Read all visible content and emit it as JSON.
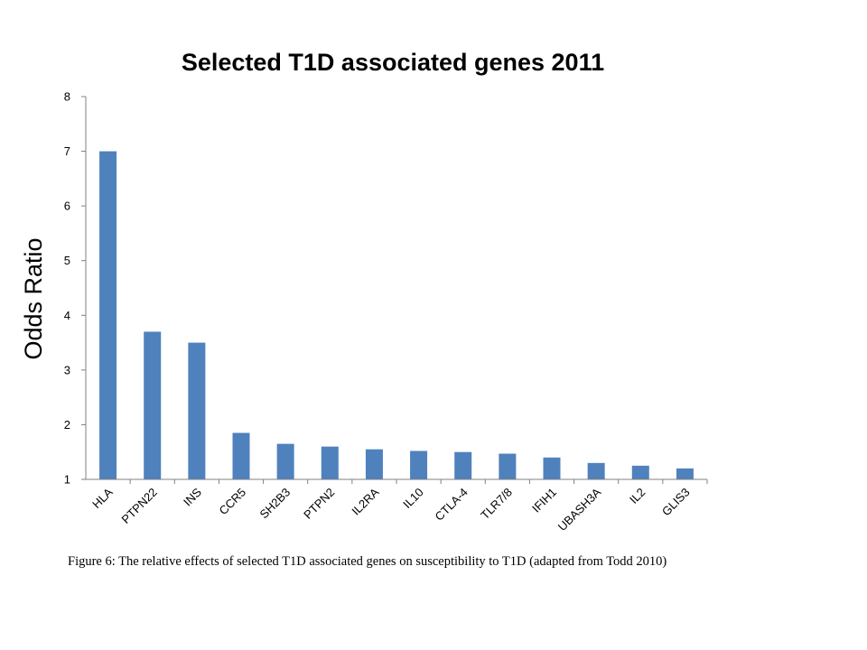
{
  "chart_data": {
    "type": "bar",
    "title": "Selected T1D associated genes 2011",
    "xlabel": "",
    "ylabel": "Odds Ratio",
    "ylim": [
      1,
      8
    ],
    "yticks": [
      1,
      2,
      3,
      4,
      5,
      6,
      7,
      8
    ],
    "grid": false,
    "bar_color": "#4f81bd",
    "categories": [
      "HLA",
      "PTPN22",
      "INS",
      "CCR5",
      "SH2B3",
      "PTPN2",
      "IL2RA",
      "IL10",
      "CTLA-4",
      "TLR7/8",
      "IFIH1",
      "UBASH3A",
      "IL2",
      "GLIS3"
    ],
    "values": [
      7.0,
      3.7,
      3.5,
      1.85,
      1.65,
      1.6,
      1.55,
      1.52,
      1.5,
      1.47,
      1.4,
      1.3,
      1.25,
      1.2
    ]
  },
  "caption": "Figure 6: The relative effects of selected T1D associated genes on susceptibility to T1D (adapted from Todd 2010)"
}
